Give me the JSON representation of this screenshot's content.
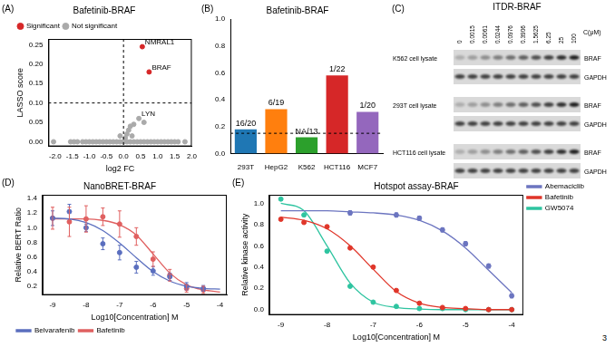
{
  "page_number": "3",
  "chart_data": [
    {
      "panel": "(A)",
      "type": "scatter",
      "title": "Bafetinib-BRAF",
      "x_label": "log2 FC",
      "y_label": "LASSO score",
      "xlim": [
        -2.2,
        2.0
      ],
      "xticks": [
        {
          "value": -2,
          "label": "-2.0"
        },
        {
          "value": -1.5,
          "label": "-1.5"
        },
        {
          "value": -1,
          "label": "-1.0"
        },
        {
          "value": -0.5,
          "label": "-0.5"
        },
        {
          "value": 0,
          "label": "0.0"
        },
        {
          "value": 0.5,
          "label": "0.5"
        },
        {
          "value": 1,
          "label": "1.0"
        },
        {
          "value": 1.5,
          "label": "1.5"
        },
        {
          "value": 2,
          "label": "2.0"
        }
      ],
      "ylim": [
        -0.012,
        0.265
      ],
      "yticks": [
        {
          "value": 0,
          "label": "0.00"
        },
        {
          "value": 0.05,
          "label": "0.05"
        },
        {
          "value": 0.1,
          "label": "0.10"
        },
        {
          "value": 0.15,
          "label": "0.15"
        },
        {
          "value": 0.2,
          "label": "0.20"
        },
        {
          "value": 0.25,
          "label": "0.25"
        }
      ],
      "grid": false,
      "legend": "top-left",
      "hlines": [
        0.1
      ],
      "vlines": [
        0
      ],
      "series": [
        {
          "name": "Significant",
          "color": "#d62728",
          "marker": "circle",
          "x": [
            0.55,
            0.75
          ],
          "values": [
            0.245,
            0.18
          ]
        },
        {
          "name": "Not significant",
          "color": "#aaaaaa",
          "marker": "circle",
          "x": [
            -2.05,
            -1.55,
            -1.45,
            -1.35,
            -1.2,
            -1.1,
            -1.0,
            -0.9,
            -0.8,
            -0.7,
            -0.6,
            -0.5,
            -0.4,
            -0.3,
            -0.2,
            -0.1,
            0.0,
            0.1,
            0.2,
            0.3,
            0.4,
            0.5,
            0.6,
            0.7,
            0.8,
            0.9,
            1.0,
            1.1,
            1.2,
            1.3,
            1.4,
            1.5,
            1.6,
            1.8,
            0.05,
            0.1,
            0.15,
            0.2,
            0.3,
            0.45,
            0.6,
            -0.1,
            0.25
          ],
          "values": [
            0,
            0,
            0,
            0,
            0,
            0,
            0,
            0,
            0,
            0,
            0,
            0,
            0,
            0,
            0,
            0,
            0,
            0,
            0,
            0,
            0,
            0,
            0,
            0,
            0,
            0,
            0,
            0,
            0,
            0,
            0,
            0,
            0,
            0,
            0.01,
            0.02,
            0.03,
            0.04,
            0.045,
            0.06,
            0.05,
            0.015,
            0.015
          ]
        }
      ],
      "annotations": [
        {
          "text": "NMRAL1",
          "x": 0.55,
          "y": 0.245
        },
        {
          "text": "BRAF",
          "x": 0.75,
          "y": 0.18
        },
        {
          "text": "LYN",
          "x": 0.45,
          "y": 0.06
        }
      ]
    },
    {
      "panel": "(B)",
      "type": "bar",
      "title": "Bafetinib-BRAF",
      "categories": [
        "293T",
        "HepG2",
        "K562",
        "HCT116",
        "MCF7"
      ],
      "values": [
        0.18,
        0.33,
        0.12,
        0.58,
        0.31
      ],
      "colors": [
        "#1f77b4",
        "#ff7f0e",
        "#2ca02c",
        "#d62728",
        "#9467bd"
      ],
      "bar_annotations": [
        "16/20",
        "6/19",
        "NA/13",
        "1/22",
        "1/20"
      ],
      "ylim": [
        0,
        1.0
      ],
      "yticks": [
        {
          "value": 0,
          "label": "0.0"
        },
        0.2,
        0.4,
        0.6,
        0.8,
        {
          "value": 1,
          "label": "1.0"
        }
      ],
      "grid": false,
      "hlines": [
        0.15
      ]
    },
    {
      "panel": "(D)",
      "type": "scatter",
      "title": "NanoBRET-BRAF",
      "x_label": "Log10[Concentration] M",
      "y_label": "Relative BERT Ratio",
      "xlim": [
        -9.3,
        -3.8
      ],
      "xticks": [
        -9,
        -8,
        -7,
        -6,
        -5,
        -4
      ],
      "ylim": [
        0.08,
        1.45
      ],
      "yticks": [
        0.2,
        0.4,
        0.6,
        0.8,
        {
          "value": 1,
          "label": "1.0"
        },
        1.2,
        1.4
      ],
      "grid": false,
      "legend": "bottom-left",
      "series": [
        {
          "name": "Belvarafenib",
          "color": "#5b6fbf",
          "marker": "circle",
          "x": [
            -9,
            -8.5,
            -8,
            -7.5,
            -7,
            -6.5,
            -6,
            -5.5,
            -5,
            -4.5
          ],
          "values": [
            1.13,
            1.22,
            1.0,
            0.78,
            0.66,
            0.46,
            0.41,
            0.33,
            0.2,
            0.17
          ],
          "errors": [
            0.1,
            0.1,
            0.05,
            0.08,
            0.1,
            0.08,
            0.06,
            0.05,
            0.05,
            0.04
          ],
          "fit": {
            "x": [
              -9,
              -8.5,
              -8,
              -7.5,
              -7,
              -6.5,
              -6,
              -5.5,
              -5,
              -4.5,
              -4
            ],
            "values": [
              1.13,
              1.12,
              1.07,
              0.96,
              0.79,
              0.59,
              0.4,
              0.27,
              0.2,
              0.17,
              0.16
            ]
          }
        },
        {
          "name": "Bafetinib",
          "color": "#e06060",
          "marker": "circle",
          "x": [
            -9,
            -8.5,
            -8,
            -7.5,
            -7,
            -6.5,
            -6,
            -5.5,
            -5,
            -4.5
          ],
          "values": [
            1.13,
            1.08,
            1.12,
            1.15,
            1.05,
            0.88,
            0.57,
            0.35,
            0.17,
            0.15
          ],
          "errors": [
            0.15,
            0.2,
            0.18,
            0.12,
            0.18,
            0.12,
            0.1,
            0.08,
            0.05,
            0.05
          ],
          "fit": {
            "x": [
              -9,
              -8.5,
              -8,
              -7.5,
              -7,
              -6.5,
              -6,
              -5.5,
              -5,
              -4.5,
              -4
            ],
            "values": [
              1.12,
              1.12,
              1.12,
              1.1,
              1.04,
              0.9,
              0.64,
              0.38,
              0.22,
              0.15,
              0.12
            ]
          }
        }
      ]
    },
    {
      "panel": "(E)",
      "type": "scatter",
      "title": "Hotspot assay-BRAF",
      "x_label": "Log10[Concentration] M",
      "y_label": "Relative kinase activity",
      "xlim": [
        -9.25,
        -3.75
      ],
      "xticks": [
        -9,
        -8,
        -7,
        -6,
        -5,
        -4
      ],
      "ylim": [
        -0.05,
        1.08
      ],
      "yticks": [
        {
          "value": 0,
          "label": "0.0"
        },
        0.2,
        0.4,
        0.6,
        0.8,
        {
          "value": 1,
          "label": "1.0"
        }
      ],
      "grid": false,
      "legend": "right",
      "series": [
        {
          "name": "Abemaciclib",
          "color": "#6c75c0",
          "marker": "circle",
          "x": [
            -7.5,
            -6.5,
            -6,
            -5.5,
            -5,
            -4.5,
            -4
          ],
          "values": [
            0.91,
            0.89,
            0.86,
            0.75,
            0.62,
            0.41,
            0.13
          ],
          "errors": [
            0.02,
            0.02,
            0.02,
            0.02,
            0.02,
            0.02,
            0.02
          ],
          "fit": {
            "x": [
              -9,
              -8.5,
              -8,
              -7.5,
              -7,
              -6.5,
              -6,
              -5.5,
              -5,
              -4.5,
              -4
            ],
            "values": [
              0.93,
              0.93,
              0.93,
              0.92,
              0.91,
              0.89,
              0.84,
              0.74,
              0.58,
              0.37,
              0.16
            ]
          }
        },
        {
          "name": "Bafetinib",
          "color": "#e0362a",
          "marker": "circle",
          "x": [
            -9,
            -8.5,
            -8,
            -7.5,
            -7,
            -6.5,
            -6,
            -5.5,
            -5,
            -4.5,
            -4
          ],
          "values": [
            0.85,
            0.82,
            0.78,
            0.58,
            0.4,
            0.18,
            0.06,
            0.02,
            0.01,
            0,
            0
          ],
          "fit": {
            "x": [
              -9,
              -8.5,
              -8,
              -7.5,
              -7,
              -6.5,
              -6,
              -5.5,
              -5,
              -4.5,
              -4
            ],
            "values": [
              0.87,
              0.84,
              0.76,
              0.6,
              0.38,
              0.17,
              0.06,
              0.02,
              0.01,
              0,
              0
            ]
          }
        },
        {
          "name": "GW5074",
          "color": "#2ec4a0",
          "marker": "circle",
          "x": [
            -9,
            -8.5,
            -8,
            -7.5,
            -7,
            -6.5,
            -6,
            -5.5,
            -5,
            -4.5,
            -4
          ],
          "values": [
            1.04,
            0.89,
            0.55,
            0.22,
            0.07,
            0.03,
            0.01,
            0.01,
            0,
            0,
            0
          ],
          "fit": {
            "x": [
              -9,
              -8.5,
              -8,
              -7.5,
              -7,
              -6.5,
              -6,
              -5.5,
              -5,
              -4.5,
              -4
            ],
            "values": [
              1.0,
              0.93,
              0.6,
              0.25,
              0.07,
              0.02,
              0.005,
              0,
              0,
              0,
              0
            ]
          }
        }
      ]
    }
  ],
  "blot": {
    "panel": "(C)",
    "title": "ITDR-BRAF",
    "unit": "C(μM)",
    "concentrations": [
      "0",
      "0.0015",
      "0.0061",
      "0.0244",
      "0.0976",
      "0.3906",
      "1.5625",
      "6.25",
      "25",
      "100"
    ],
    "samples": [
      {
        "name": "K562 cell lysate",
        "bands": [
          "BRAF",
          "GAPDH"
        ]
      },
      {
        "name": "293T cell lysate",
        "bands": [
          "BRAF",
          "GAPDH"
        ]
      },
      {
        "name": "HCT116 cell lysate",
        "bands": [
          "BRAF",
          "GAPDH"
        ]
      }
    ]
  }
}
